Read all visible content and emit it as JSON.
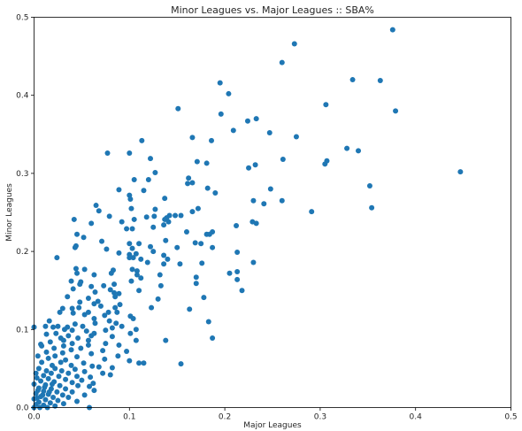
{
  "chart_data": {
    "type": "scatter",
    "title": "Minor Leagues vs. Major Leagues :: SBA%",
    "xlabel": "Major Leagues",
    "ylabel": "Minor Leagues",
    "xlim": [
      0,
      0.5
    ],
    "ylim": [
      0,
      0.5
    ],
    "xticks": [
      "0.0",
      "0.1",
      "0.2",
      "0.3",
      "0.4",
      "0.5"
    ],
    "yticks": [
      "0.0",
      "0.1",
      "0.2",
      "0.3",
      "0.4",
      "0.5"
    ],
    "grid": false,
    "point_color": "#1f77b4",
    "points": [
      [
        0.376,
        0.484
      ],
      [
        0.273,
        0.466
      ],
      [
        0.26,
        0.442
      ],
      [
        0.363,
        0.419
      ],
      [
        0.334,
        0.42
      ],
      [
        0.195,
        0.416
      ],
      [
        0.204,
        0.402
      ],
      [
        0.306,
        0.388
      ],
      [
        0.151,
        0.383
      ],
      [
        0.379,
        0.38
      ],
      [
        0.196,
        0.376
      ],
      [
        0.233,
        0.37
      ],
      [
        0.224,
        0.367
      ],
      [
        0.209,
        0.355
      ],
      [
        0.247,
        0.352
      ],
      [
        0.166,
        0.346
      ],
      [
        0.275,
        0.347
      ],
      [
        0.186,
        0.342
      ],
      [
        0.113,
        0.342
      ],
      [
        0.328,
        0.332
      ],
      [
        0.34,
        0.329
      ],
      [
        0.077,
        0.326
      ],
      [
        0.1,
        0.326
      ],
      [
        0.122,
        0.319
      ],
      [
        0.261,
        0.318
      ],
      [
        0.307,
        0.316
      ],
      [
        0.305,
        0.312
      ],
      [
        0.171,
        0.315
      ],
      [
        0.181,
        0.313
      ],
      [
        0.232,
        0.311
      ],
      [
        0.225,
        0.307
      ],
      [
        0.127,
        0.301
      ],
      [
        0.447,
        0.302
      ],
      [
        0.162,
        0.294
      ],
      [
        0.12,
        0.292
      ],
      [
        0.105,
        0.292
      ],
      [
        0.161,
        0.287
      ],
      [
        0.166,
        0.288
      ],
      [
        0.352,
        0.284
      ],
      [
        0.248,
        0.28
      ],
      [
        0.089,
        0.279
      ],
      [
        0.182,
        0.281
      ],
      [
        0.115,
        0.278
      ],
      [
        0.19,
        0.275
      ],
      [
        0.1,
        0.272
      ],
      [
        0.101,
        0.267
      ],
      [
        0.137,
        0.268
      ],
      [
        0.23,
        0.265
      ],
      [
        0.26,
        0.265
      ],
      [
        0.241,
        0.261
      ],
      [
        0.065,
        0.259
      ],
      [
        0.102,
        0.255
      ],
      [
        0.068,
        0.252
      ],
      [
        0.354,
        0.256
      ],
      [
        0.127,
        0.254
      ],
      [
        0.172,
        0.255
      ],
      [
        0.166,
        0.251
      ],
      [
        0.291,
        0.251
      ],
      [
        0.079,
        0.245
      ],
      [
        0.142,
        0.246
      ],
      [
        0.148,
        0.246
      ],
      [
        0.154,
        0.246
      ],
      [
        0.042,
        0.241
      ],
      [
        0.118,
        0.244
      ],
      [
        0.126,
        0.245
      ],
      [
        0.105,
        0.241
      ],
      [
        0.092,
        0.238
      ],
      [
        0.139,
        0.243
      ],
      [
        0.137,
        0.241
      ],
      [
        0.06,
        0.236
      ],
      [
        0.229,
        0.238
      ],
      [
        0.141,
        0.238
      ],
      [
        0.233,
        0.236
      ],
      [
        0.136,
        0.234
      ],
      [
        0.212,
        0.233
      ],
      [
        0.097,
        0.229
      ],
      [
        0.103,
        0.229
      ],
      [
        0.125,
        0.231
      ],
      [
        0.187,
        0.225
      ],
      [
        0.045,
        0.222
      ],
      [
        0.181,
        0.222
      ],
      [
        0.16,
        0.225
      ],
      [
        0.052,
        0.218
      ],
      [
        0.184,
        0.222
      ],
      [
        0.071,
        0.213
      ],
      [
        0.138,
        0.214
      ],
      [
        0.1,
        0.21
      ],
      [
        0.11,
        0.21
      ],
      [
        0.169,
        0.211
      ],
      [
        0.175,
        0.21
      ],
      [
        0.044,
        0.207
      ],
      [
        0.103,
        0.204
      ],
      [
        0.122,
        0.206
      ],
      [
        0.15,
        0.205
      ],
      [
        0.043,
        0.205
      ],
      [
        0.187,
        0.205
      ],
      [
        0.076,
        0.203
      ],
      [
        0.125,
        0.2
      ],
      [
        0.089,
        0.198
      ],
      [
        0.213,
        0.199
      ],
      [
        0.1,
        0.196
      ],
      [
        0.107,
        0.197
      ],
      [
        0.136,
        0.195
      ],
      [
        0.024,
        0.192
      ],
      [
        0.1,
        0.192
      ],
      [
        0.104,
        0.192
      ],
      [
        0.112,
        0.19
      ],
      [
        0.14,
        0.19
      ],
      [
        0.119,
        0.186
      ],
      [
        0.153,
        0.184
      ],
      [
        0.23,
        0.186
      ],
      [
        0.176,
        0.185
      ],
      [
        0.136,
        0.184
      ],
      [
        0.044,
        0.178
      ],
      [
        0.053,
        0.177
      ],
      [
        0.083,
        0.176
      ],
      [
        0.103,
        0.177
      ],
      [
        0.213,
        0.174
      ],
      [
        0.108,
        0.175
      ],
      [
        0.045,
        0.172
      ],
      [
        0.081,
        0.172
      ],
      [
        0.063,
        0.17
      ],
      [
        0.108,
        0.17
      ],
      [
        0.112,
        0.166
      ],
      [
        0.132,
        0.17
      ],
      [
        0.205,
        0.172
      ],
      [
        0.17,
        0.167
      ],
      [
        0.213,
        0.164
      ],
      [
        0.039,
        0.162
      ],
      [
        0.049,
        0.161
      ],
      [
        0.102,
        0.162
      ],
      [
        0.048,
        0.158
      ],
      [
        0.084,
        0.158
      ],
      [
        0.133,
        0.156
      ],
      [
        0.06,
        0.155
      ],
      [
        0.073,
        0.156
      ],
      [
        0.17,
        0.159
      ],
      [
        0.08,
        0.151
      ],
      [
        0.041,
        0.152
      ],
      [
        0.11,
        0.15
      ],
      [
        0.218,
        0.15
      ],
      [
        0.064,
        0.148
      ],
      [
        0.084,
        0.147
      ],
      [
        0.089,
        0.146
      ],
      [
        0.035,
        0.142
      ],
      [
        0.057,
        0.14
      ],
      [
        0.085,
        0.142
      ],
      [
        0.13,
        0.139
      ],
      [
        0.178,
        0.141
      ],
      [
        0.063,
        0.133
      ],
      [
        0.09,
        0.132
      ],
      [
        0.048,
        0.135
      ],
      [
        0.067,
        0.136
      ],
      [
        0.07,
        0.13
      ],
      [
        0.085,
        0.128
      ],
      [
        0.123,
        0.128
      ],
      [
        0.163,
        0.126
      ],
      [
        0.03,
        0.127
      ],
      [
        0.04,
        0.127
      ],
      [
        0.047,
        0.128
      ],
      [
        0.027,
        0.122
      ],
      [
        0.057,
        0.122
      ],
      [
        0.078,
        0.122
      ],
      [
        0.087,
        0.122
      ],
      [
        0.041,
        0.121
      ],
      [
        0.053,
        0.119
      ],
      [
        0.074,
        0.118
      ],
      [
        0.101,
        0.117
      ],
      [
        0.104,
        0.114
      ],
      [
        0.063,
        0.114
      ],
      [
        0.016,
        0.111
      ],
      [
        0.012,
        0.104
      ],
      [
        0.043,
        0.107
      ],
      [
        0.064,
        0.108
      ],
      [
        0.079,
        0.111
      ],
      [
        0.086,
        0.108
      ],
      [
        0.183,
        0.11
      ],
      [
        0.0,
        0.103
      ],
      [
        0.02,
        0.103
      ],
      [
        0.025,
        0.104
      ],
      [
        0.035,
        0.103
      ],
      [
        0.051,
        0.104
      ],
      [
        0.092,
        0.104
      ],
      [
        0.082,
        0.102
      ],
      [
        0.107,
        0.1
      ],
      [
        0.032,
        0.1
      ],
      [
        0.04,
        0.099
      ],
      [
        0.055,
        0.098
      ],
      [
        0.075,
        0.099
      ],
      [
        0.023,
        0.095
      ],
      [
        0.063,
        0.095
      ],
      [
        0.101,
        0.095
      ],
      [
        0.013,
        0.094
      ],
      [
        0.036,
        0.092
      ],
      [
        0.06,
        0.092
      ],
      [
        0.082,
        0.091
      ],
      [
        0.028,
        0.089
      ],
      [
        0.046,
        0.089
      ],
      [
        0.187,
        0.089
      ],
      [
        0.031,
        0.086
      ],
      [
        0.057,
        0.086
      ],
      [
        0.107,
        0.086
      ],
      [
        0.138,
        0.086
      ],
      [
        0.017,
        0.084
      ],
      [
        0.007,
        0.081
      ],
      [
        0.04,
        0.082
      ],
      [
        0.075,
        0.082
      ],
      [
        0.008,
        0.079
      ],
      [
        0.031,
        0.079
      ],
      [
        0.057,
        0.08
      ],
      [
        0.089,
        0.08
      ],
      [
        0.021,
        0.076
      ],
      [
        0.049,
        0.076
      ],
      [
        0.039,
        0.074
      ],
      [
        0.072,
        0.073
      ],
      [
        0.097,
        0.072
      ],
      [
        0.013,
        0.071
      ],
      [
        0.03,
        0.07
      ],
      [
        0.06,
        0.069
      ],
      [
        0.004,
        0.066
      ],
      [
        0.022,
        0.066
      ],
      [
        0.045,
        0.065
      ],
      [
        0.088,
        0.066
      ],
      [
        0.015,
        0.063
      ],
      [
        0.033,
        0.061
      ],
      [
        0.074,
        0.062
      ],
      [
        0.1,
        0.06
      ],
      [
        0.008,
        0.058
      ],
      [
        0.028,
        0.058
      ],
      [
        0.052,
        0.057
      ],
      [
        0.11,
        0.057
      ],
      [
        0.115,
        0.057
      ],
      [
        0.154,
        0.056
      ],
      [
        0.019,
        0.054
      ],
      [
        0.039,
        0.054
      ],
      [
        0.061,
        0.053
      ],
      [
        0.068,
        0.052
      ],
      [
        0.082,
        0.051
      ],
      [
        0.005,
        0.05
      ],
      [
        0.022,
        0.05
      ],
      [
        0.043,
        0.049
      ],
      [
        0.013,
        0.047
      ],
      [
        0.029,
        0.047
      ],
      [
        0.053,
        0.046
      ],
      [
        0.002,
        0.044
      ],
      [
        0.018,
        0.044
      ],
      [
        0.036,
        0.044
      ],
      [
        0.072,
        0.044
      ],
      [
        0.08,
        0.042
      ],
      [
        0.01,
        0.041
      ],
      [
        0.026,
        0.04
      ],
      [
        0.045,
        0.04
      ],
      [
        0.059,
        0.039
      ],
      [
        0.003,
        0.038
      ],
      [
        0.015,
        0.037
      ],
      [
        0.033,
        0.036
      ],
      [
        0.05,
        0.035
      ],
      [
        0.007,
        0.034
      ],
      [
        0.021,
        0.033
      ],
      [
        0.04,
        0.032
      ],
      [
        0.062,
        0.031
      ],
      [
        0.0,
        0.03
      ],
      [
        0.012,
        0.029
      ],
      [
        0.027,
        0.028
      ],
      [
        0.046,
        0.028
      ],
      [
        0.058,
        0.027
      ],
      [
        0.005,
        0.025
      ],
      [
        0.018,
        0.024
      ],
      [
        0.033,
        0.024
      ],
      [
        0.063,
        0.022
      ],
      [
        0.01,
        0.021
      ],
      [
        0.024,
        0.02
      ],
      [
        0.04,
        0.02
      ],
      [
        0.002,
        0.018
      ],
      [
        0.015,
        0.017
      ],
      [
        0.03,
        0.016
      ],
      [
        0.053,
        0.016
      ],
      [
        0.007,
        0.014
      ],
      [
        0.02,
        0.013
      ],
      [
        0.036,
        0.013
      ],
      [
        0.0,
        0.011
      ],
      [
        0.012,
        0.01
      ],
      [
        0.025,
        0.009
      ],
      [
        0.045,
        0.008
      ],
      [
        0.005,
        0.007
      ],
      [
        0.017,
        0.006
      ],
      [
        0.031,
        0.005
      ],
      [
        0.002,
        0.004
      ],
      [
        0.01,
        0.003
      ],
      [
        0.022,
        0.002
      ],
      [
        0.0,
        0.0
      ],
      [
        0.006,
        0.0
      ],
      [
        0.014,
        0.0
      ],
      [
        0.058,
        0.0
      ],
      [
        0.003,
        0.012
      ],
      [
        0.009,
        0.016
      ],
      [
        0.016,
        0.02
      ],
      [
        0.011,
        0.026
      ],
      [
        0.019,
        0.03
      ],
      [
        0.004,
        0.022
      ]
    ]
  }
}
